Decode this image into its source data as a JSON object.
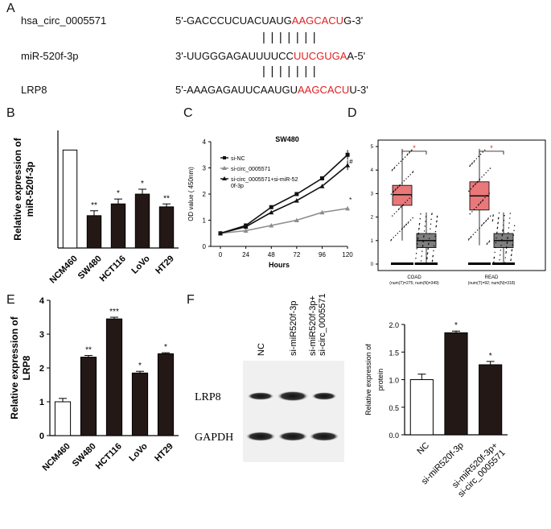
{
  "panel_labels": [
    "A",
    "B",
    "C",
    "D",
    "E",
    "F"
  ],
  "panel_a": {
    "rows": [
      {
        "name": "hsa_circ_0005571",
        "prefix": "5'-GACCCUCUACUAUG",
        "highlight": "AAGCACU",
        "suffix": "G-3'"
      },
      {
        "name": "miR-520f-3p",
        "prefix": "3'-UUGGGAGAUUUUCC",
        "highlight": "UUCGUGA",
        "suffix": "A-5'"
      },
      {
        "name": "LRP8",
        "prefix": "5'-AAAGAGAUUCAAUGU",
        "highlight": "AAGCACU",
        "suffix": "U-3'"
      }
    ],
    "pair_bars": "| | | | | | |"
  },
  "colors": {
    "red": "#e02020",
    "bar_dark": "#231815",
    "line_gray": "#8c8c8c",
    "box_red": "#e8787a",
    "box_gray": "#7f7f7f"
  },
  "chart_data": [
    {
      "id": "B",
      "type": "bar",
      "ylabel": "Relative expression of\nmiR-520f-3p",
      "categories": [
        "NCM460",
        "SW480",
        "HCT116",
        "LoVo",
        "HT29"
      ],
      "values": [
        1.0,
        0.33,
        0.45,
        0.55,
        0.42
      ],
      "errors": [
        0,
        0.05,
        0.05,
        0.05,
        0.03
      ],
      "significance": [
        "",
        "**",
        "*",
        "*",
        "**"
      ],
      "ylim": [
        0,
        1.2
      ]
    },
    {
      "id": "C",
      "type": "line",
      "title": "SW480",
      "xlabel": "Hours",
      "ylabel": "OD value ( 450nm)",
      "x": [
        0,
        24,
        48,
        72,
        96,
        120
      ],
      "xlim": [
        0,
        120
      ],
      "ylim": [
        0,
        4
      ],
      "yticks": [
        0,
        1,
        2,
        3,
        4
      ],
      "series": [
        {
          "name": "si-NC",
          "values": [
            0.5,
            0.8,
            1.5,
            2.0,
            2.6,
            3.5
          ]
        },
        {
          "name": "si-circ_0005571",
          "values": [
            0.5,
            0.6,
            0.8,
            1.0,
            1.3,
            1.45
          ]
        },
        {
          "name": "si-circ_0005571+si-miR-52",
          "name2": "0f-3p",
          "values": [
            0.5,
            0.75,
            1.3,
            1.75,
            2.3,
            3.1
          ]
        }
      ],
      "annotations": [
        "*",
        "#"
      ]
    },
    {
      "id": "D",
      "type": "box",
      "groups": [
        {
          "label": "COAD",
          "sub": "(num(T)=275; num(N)=349)",
          "tumor": {
            "q1": 2.5,
            "median": 2.95,
            "q3": 3.35,
            "min": 1.0,
            "max": 4.9
          },
          "normal": {
            "q1": 0.7,
            "median": 1.0,
            "q3": 1.3,
            "min": 0.0,
            "max": 2.2
          }
        },
        {
          "label": "READ",
          "sub": "(num(T)=92; num(N)=318)",
          "tumor": {
            "q1": 2.3,
            "median": 2.9,
            "q3": 3.5,
            "min": 0.8,
            "max": 4.9
          },
          "normal": {
            "q1": 0.7,
            "median": 1.0,
            "q3": 1.3,
            "min": 0.0,
            "max": 2.2
          }
        }
      ],
      "ylim": [
        0,
        5
      ],
      "yticks": [
        0,
        1,
        2,
        3,
        4,
        5
      ],
      "significance": "*"
    },
    {
      "id": "E",
      "type": "bar",
      "ylabel": "Relative expression of\nLRP8",
      "categories": [
        "NCM460",
        "SW480",
        "HCT116",
        "LoVo",
        "HT29"
      ],
      "values": [
        1.0,
        2.32,
        3.45,
        1.85,
        2.42
      ],
      "errors": [
        0.1,
        0.05,
        0.05,
        0.05,
        0.03
      ],
      "significance": [
        "",
        "**",
        "***",
        "*",
        "*"
      ],
      "ylim": [
        0,
        4
      ],
      "yticks": [
        0,
        1,
        2,
        3,
        4
      ]
    },
    {
      "id": "F",
      "type": "bar",
      "ylabel": "Relative expression of\nprotein",
      "categories": [
        "NC",
        "si-miR520f-3p",
        "si-miR520f-3p+\nsi-circ_0005571"
      ],
      "values": [
        1.0,
        1.85,
        1.27
      ],
      "errors": [
        0.1,
        0.03,
        0.06
      ],
      "significance": [
        "",
        "*",
        "*"
      ],
      "ylim": [
        0,
        2.0
      ],
      "yticks": [
        0.0,
        0.5,
        1.0,
        1.5,
        2.0
      ]
    }
  ],
  "western_blot": {
    "lanes": [
      "NC",
      "si-miR520f-3p",
      "si-miR520f-3p+\nsi-circ_0005571"
    ],
    "bands": [
      "LRP8",
      "GAPDH"
    ]
  }
}
